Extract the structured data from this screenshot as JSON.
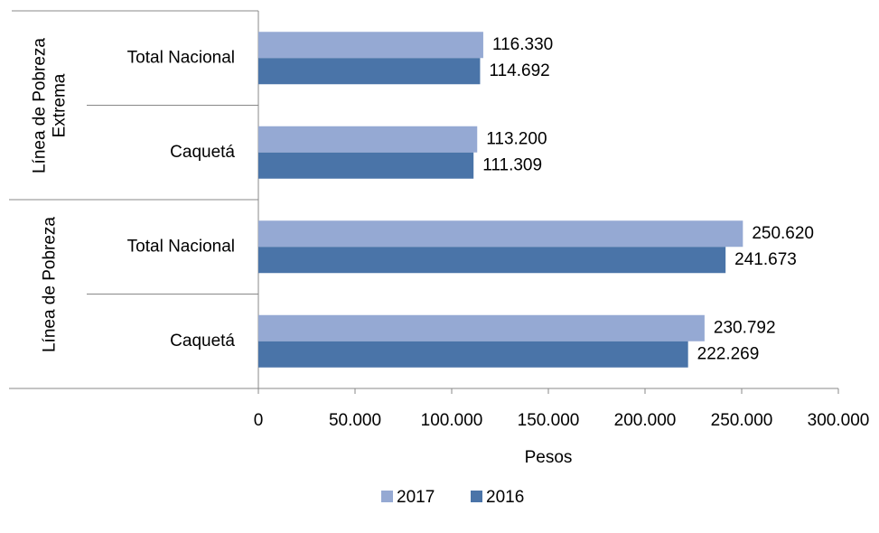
{
  "chart_data": {
    "type": "bar",
    "orientation": "horizontal",
    "groups": [
      {
        "name": "Línea de Pobreza Extrema",
        "categories": [
          "Total Nacional",
          "Caquetá"
        ]
      },
      {
        "name": "Línea de Pobreza",
        "categories": [
          "Total Nacional",
          "Caquetá"
        ]
      }
    ],
    "series": [
      {
        "name": "2017",
        "color": "#95a9d3",
        "values": [
          116330,
          113200,
          250620,
          230792
        ],
        "value_labels": [
          "116.330",
          "113.200",
          "250.620",
          "230.792"
        ]
      },
      {
        "name": "2016",
        "color": "#4a74a8",
        "values": [
          114692,
          111309,
          241673,
          222269
        ],
        "value_labels": [
          "114.692",
          "111.309",
          "241.673",
          "222.269"
        ]
      }
    ],
    "x_label": "Pesos",
    "xlim": [
      0,
      300000
    ],
    "xticks": [
      0,
      {
        "value": 50000,
        "label": "50.000"
      },
      {
        "value": 100000,
        "label": "100.000"
      },
      {
        "value": 150000,
        "label": "150.000"
      },
      {
        "value": 200000,
        "label": "200.000"
      },
      {
        "value": 250000,
        "label": "250.000"
      },
      {
        "value": 300000,
        "label": "300.000"
      }
    ],
    "grid": false,
    "legend": "bottom"
  }
}
